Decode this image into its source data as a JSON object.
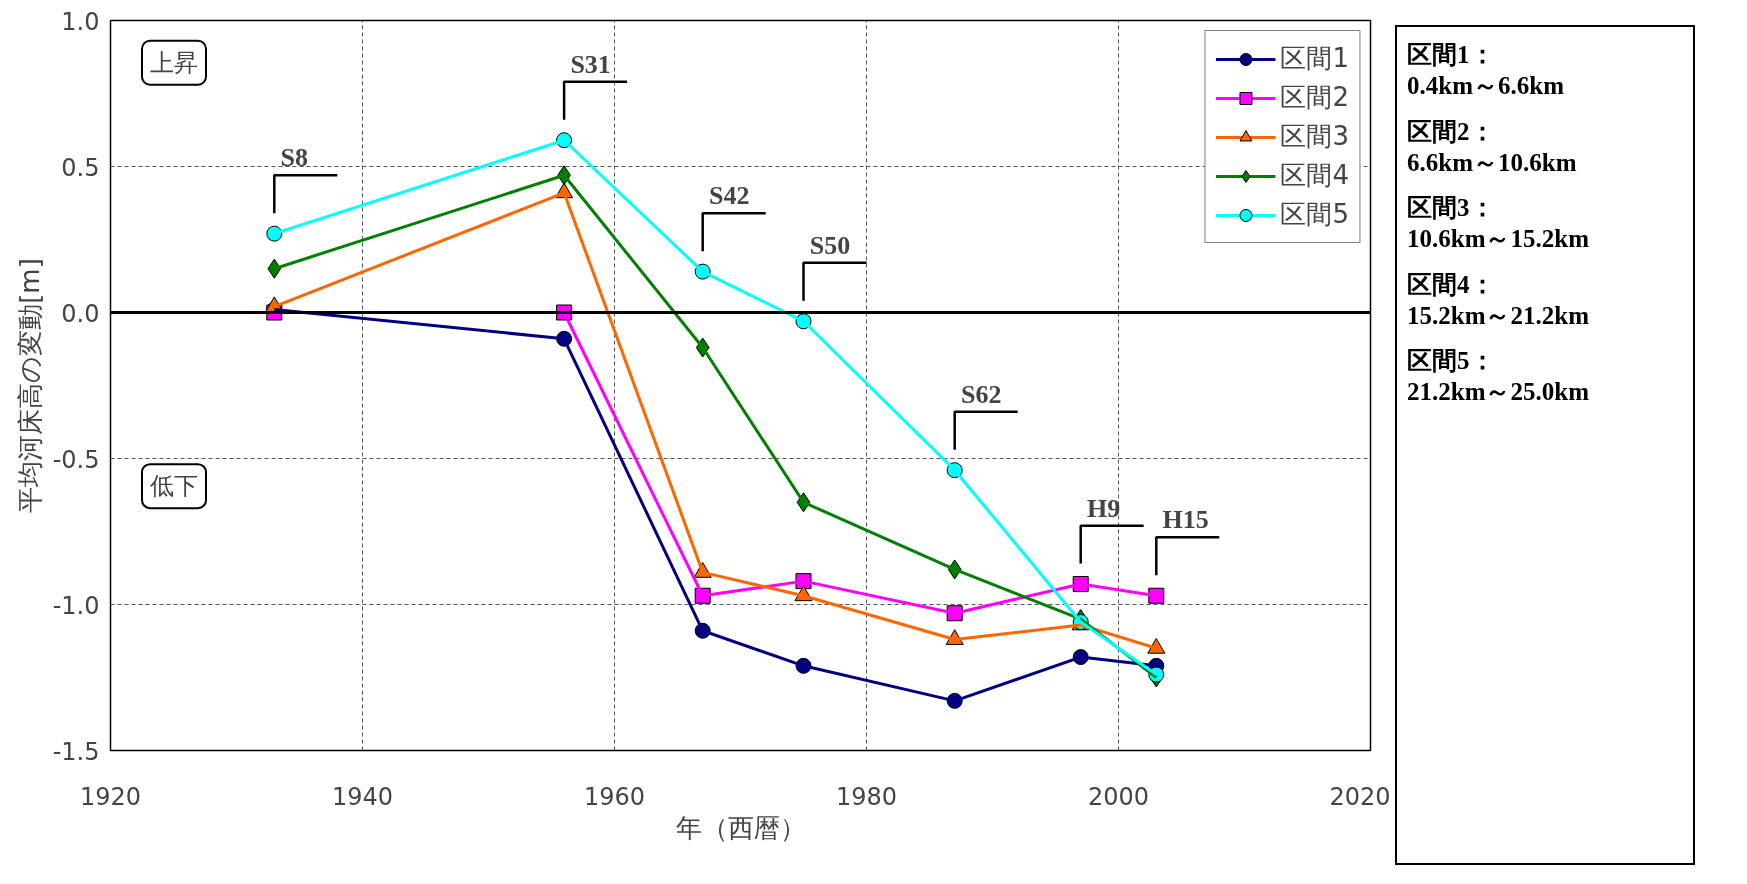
{
  "chart_data": {
    "type": "line",
    "xlabel": "年（西暦）",
    "ylabel": "平均河床高の変動[m]",
    "x": [
      1933,
      1956,
      1967,
      1975,
      1987,
      1997,
      2003
    ],
    "series": [
      {
        "name": "区間1",
        "color": "#000080",
        "marker": "circle",
        "values": [
          0.01,
          -0.09,
          -1.09,
          -1.21,
          -1.33,
          -1.18,
          -1.21
        ]
      },
      {
        "name": "区間2",
        "color": "#ff00ff",
        "marker": "square",
        "values": [
          0.0,
          0.0,
          -0.97,
          -0.92,
          -1.03,
          -0.93,
          -0.97
        ]
      },
      {
        "name": "区間3",
        "color": "#ff6600",
        "marker": "triangle",
        "values": [
          0.02,
          0.41,
          -0.89,
          -0.97,
          -1.12,
          -1.07,
          -1.15
        ]
      },
      {
        "name": "区間4",
        "color": "#008000",
        "marker": "diamond",
        "values": [
          0.15,
          0.47,
          -0.12,
          -0.65,
          -0.88,
          -1.05,
          -1.25
        ]
      },
      {
        "name": "区間5",
        "color": "#00ffff",
        "marker": "circle",
        "values": [
          0.27,
          0.59,
          0.14,
          -0.03,
          -0.54,
          -1.06,
          -1.24
        ]
      }
    ],
    "xlim": [
      1920,
      2020
    ],
    "xticks": [
      1920,
      1940,
      1960,
      1980,
      2000,
      2020
    ],
    "ylim": [
      -1.5,
      1
    ],
    "yticks": [
      {
        "value": -1.5,
        "label": "-1.5"
      },
      {
        "value": -1,
        "label": "-1.0"
      },
      {
        "value": -0.5,
        "label": "-0.5"
      },
      {
        "value": 0,
        "label": "0.0"
      },
      {
        "value": 0.5,
        "label": "0.5"
      },
      {
        "value": 1,
        "label": "1.0"
      }
    ],
    "grid": true,
    "legend": "top right",
    "line_style": "solid",
    "ref_lines": [
      {
        "axis": "y",
        "value": 0,
        "label": null,
        "color": "#000000"
      }
    ],
    "annotations": [
      "上昇",
      "低下",
      "区間1：\n0.4km～6.6km",
      "区間2：\n6.6km～10.6km",
      "区間3：\n10.6km～15.2km",
      "区間4：\n15.2km～21.2km",
      "区間5：\n21.2km～25.0km",
      {
        "text": "S8",
        "x": 1933,
        "y": 0.27
      },
      {
        "text": "S31",
        "x": 1956,
        "y": 0.59
      },
      {
        "text": "S42",
        "x": 1967,
        "y": 0.14
      },
      {
        "text": "S50",
        "x": 1975,
        "y": -0.03
      },
      {
        "text": "S62",
        "x": 1987,
        "y": -0.54
      },
      {
        "text": "H9",
        "x": 1997,
        "y": -0.93
      },
      {
        "text": "H15",
        "x": 2003,
        "y": -0.97
      }
    ]
  }
}
